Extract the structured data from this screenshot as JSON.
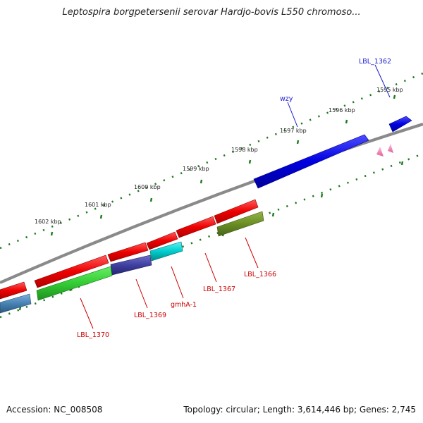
{
  "title": "Leptospira borgpetersenii serovar Hardjo-bovis L550 chromoso...",
  "footer": {
    "accession": "Accession: NC_008508",
    "topology": "Topology: circular; Length: 3,614,446 bp; Genes: 2,745"
  },
  "kbp_labels": [
    "1595 kbp",
    "1596 kbp",
    "1597 kbp",
    "1598 kbp",
    "1599 kbp",
    "1600 kbp",
    "1601 kbp",
    "1602 kbp"
  ],
  "gene_labels": {
    "lbl_1362": "LBL_1362",
    "wzy": "wzy",
    "lbl_1366": "LBL_1366",
    "lbl_1367": "LBL_1367",
    "gmha_1": "gmhA-1",
    "lbl_1369": "LBL_1369",
    "lbl_1370": "LBL_1370"
  },
  "colors": {
    "backbone": "#8a8a8a",
    "tick_dots": "#1e7a1e",
    "forward_gene": "#0000e0",
    "reverse_gene": "#e80000",
    "cog_green": "#33cc33",
    "cog_olive": "#6b8e23",
    "cog_cyan": "#00cccc",
    "cog_slate": "#3f3fa0",
    "cog_steel": "#4682b4",
    "trna_pink": "#f080b0",
    "label_blue": "#1a1acc",
    "label_red": "#cc0000"
  }
}
